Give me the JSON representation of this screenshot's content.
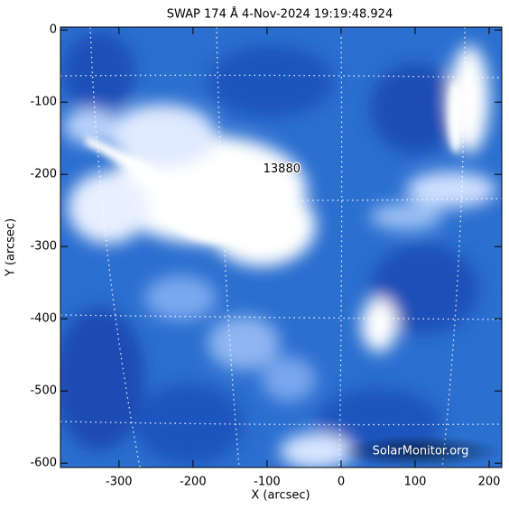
{
  "chart_data": {
    "type": "image",
    "title": "SWAP 174 Å  4-Nov-2024 19:19:48.924",
    "x_label": "X (arcsec)",
    "y_label": "Y (arcsec)",
    "xlim": [
      -379,
      217
    ],
    "ylim": [
      -606,
      4
    ],
    "xticks": [
      -300,
      -200,
      -100,
      0,
      100,
      200
    ],
    "yticks": [
      -600,
      -500,
      -400,
      -300,
      -200,
      -100,
      0
    ],
    "annotations": [
      {
        "text": "13880",
        "x": -80,
        "y": -193
      }
    ],
    "watermark": "SolarMonitor.org"
  }
}
